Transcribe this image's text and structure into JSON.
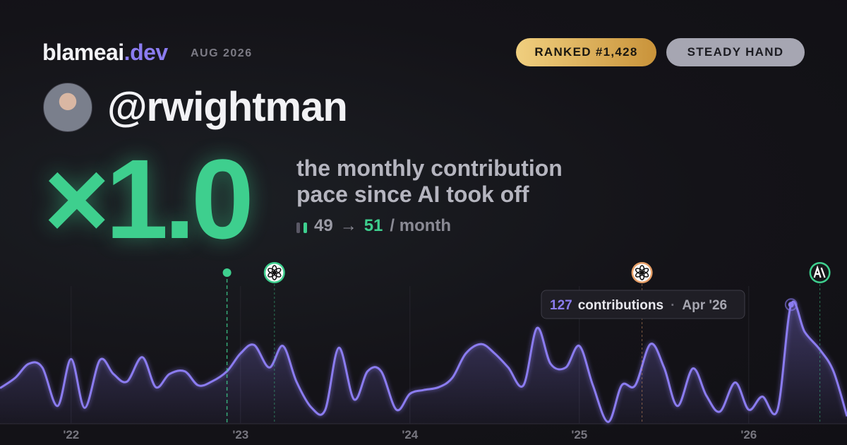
{
  "header": {
    "brand": "blameai",
    "brand_tld": ".dev",
    "date": "AUG 2026",
    "badges": [
      "RANKED #1,428",
      "STEADY HAND"
    ]
  },
  "profile": {
    "handle": "@rwightman"
  },
  "hero": {
    "multiplier": "×1.0",
    "description": [
      "the monthly contribution",
      "pace since AI took off"
    ],
    "before": 49,
    "arrow": "→",
    "after": 51,
    "unit": "/ month"
  },
  "chart_data": {
    "type": "line",
    "color": "#8b7cf0",
    "x": [
      2021.58,
      2021.67,
      2021.75,
      2021.83,
      2021.92,
      2022.0,
      2022.08,
      2022.17,
      2022.25,
      2022.33,
      2022.42,
      2022.5,
      2022.58,
      2022.67,
      2022.75,
      2022.83,
      2022.92,
      2023.0,
      2023.08,
      2023.17,
      2023.25,
      2023.33,
      2023.42,
      2023.5,
      2023.58,
      2023.67,
      2023.75,
      2023.83,
      2023.92,
      2024.0,
      2024.08,
      2024.17,
      2024.25,
      2024.33,
      2024.42,
      2024.5,
      2024.58,
      2024.67,
      2024.75,
      2024.83,
      2024.92,
      2025.0,
      2025.08,
      2025.17,
      2025.25,
      2025.33,
      2025.42,
      2025.5,
      2025.58,
      2025.67,
      2025.75,
      2025.83,
      2025.92,
      2026.0,
      2026.08,
      2026.17,
      2026.25,
      2026.33,
      2026.42,
      2026.5,
      2026.58
    ],
    "values": [
      38,
      49,
      64,
      60,
      19,
      69,
      17,
      68,
      53,
      45,
      71,
      39,
      53,
      56,
      41,
      45,
      56,
      75,
      84,
      60,
      83,
      45,
      17,
      15,
      81,
      26,
      56,
      56,
      15,
      32,
      36,
      39,
      49,
      75,
      85,
      75,
      60,
      41,
      102,
      64,
      60,
      83,
      41,
      2,
      41,
      41,
      85,
      60,
      19,
      59,
      30,
      13,
      44,
      15,
      29,
      15,
      127,
      98,
      79,
      56,
      8
    ],
    "xlim": [
      2021.58,
      2026.58
    ],
    "ylim": [
      0,
      140
    ],
    "xticks": [
      {
        "value": 2022,
        "label": "'22"
      },
      {
        "value": 2023,
        "label": "'23"
      },
      {
        "value": 2024,
        "label": "'24"
      },
      {
        "value": 2025,
        "label": "'25"
      },
      {
        "value": 2026,
        "label": "'26"
      }
    ],
    "markers": [
      {
        "x": 2022.92,
        "icon": "dot",
        "color": "#3ecf8e"
      },
      {
        "x": 2023.2,
        "icon": "openai",
        "color": "#3ecf8e"
      },
      {
        "x": 2025.37,
        "icon": "openai",
        "color": "#e8a068"
      },
      {
        "x": 2026.42,
        "icon": "anthropic",
        "color": "#3ecf8e"
      }
    ],
    "tooltip": {
      "unit": "contributions",
      "label": "Apr '26"
    }
  }
}
